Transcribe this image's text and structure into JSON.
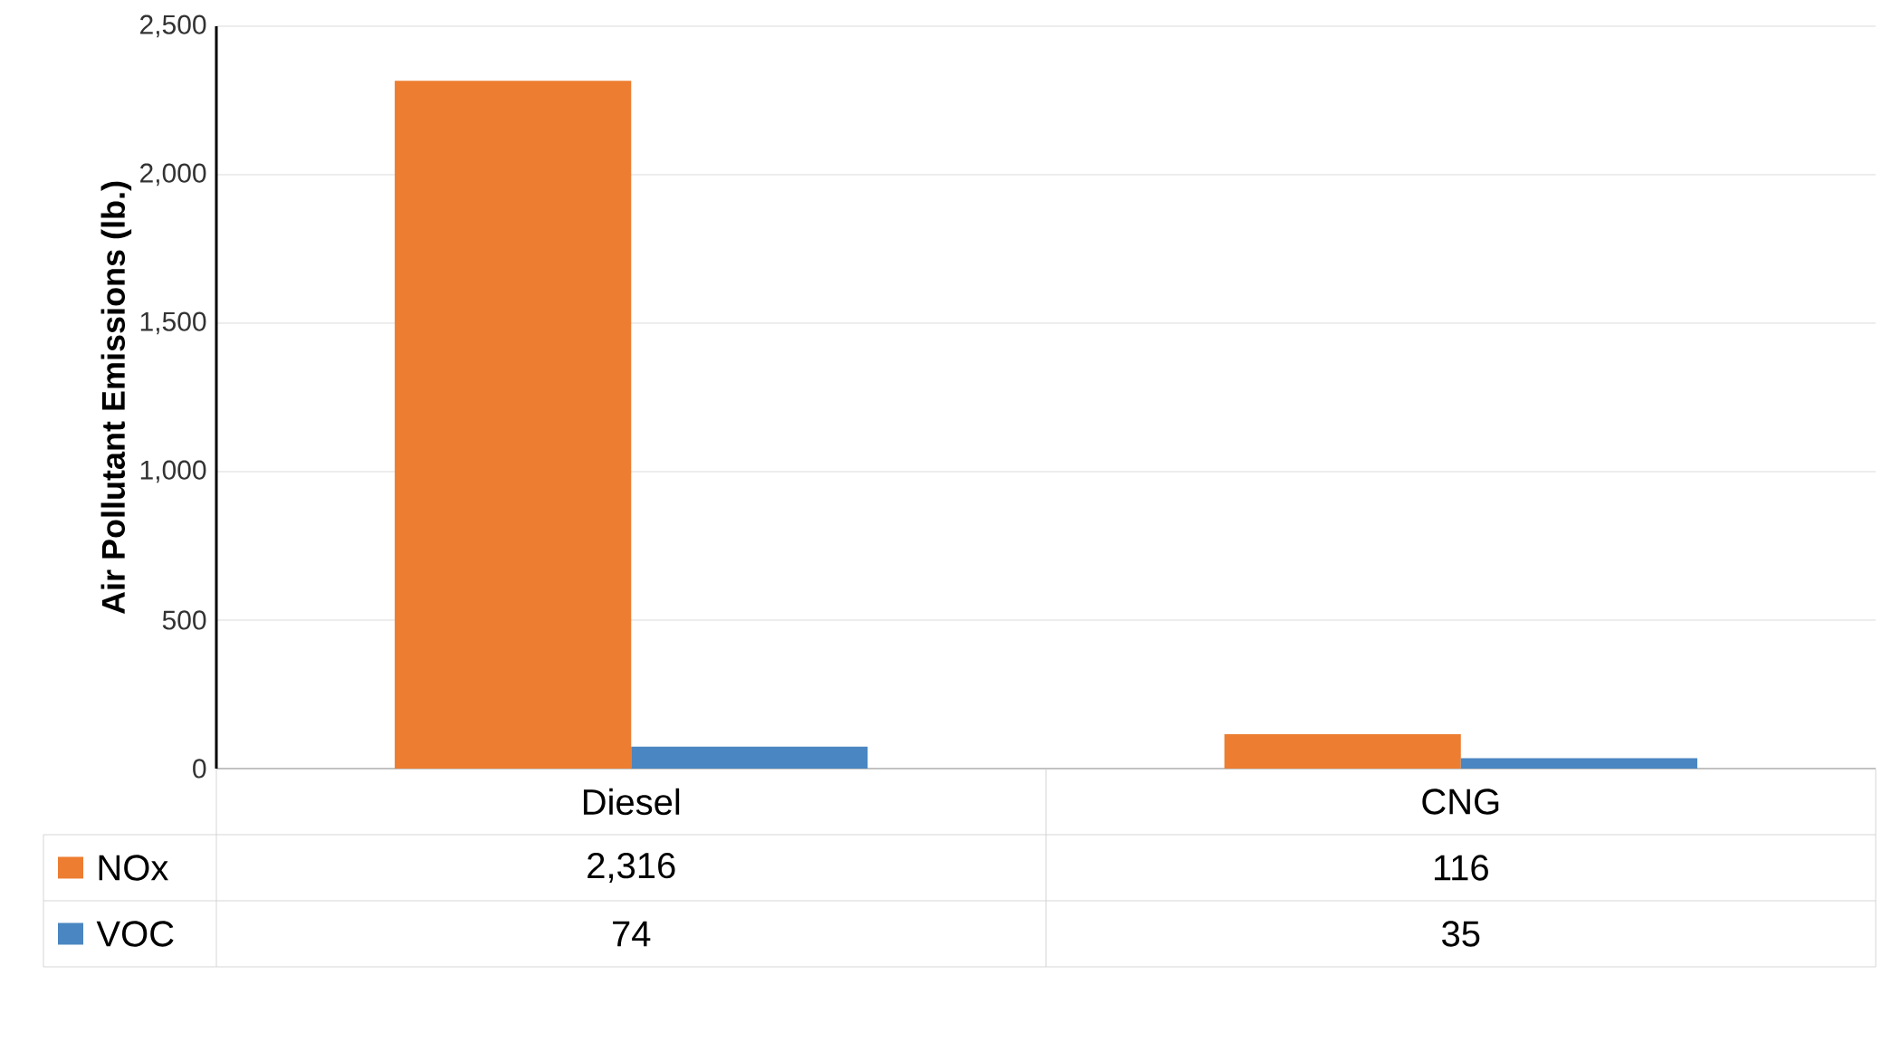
{
  "chart_data": {
    "type": "bar",
    "ylabel": "Air Pollutant Emissions (lb.)",
    "categories": [
      "Diesel",
      "CNG"
    ],
    "series": [
      {
        "name": "NOx",
        "color": "#ed7d31",
        "values": [
          2316,
          116
        ],
        "value_labels": [
          "2,316",
          "116"
        ]
      },
      {
        "name": "VOC",
        "color": "#4a86c1",
        "values": [
          74,
          35
        ],
        "value_labels": [
          "74",
          "35"
        ]
      }
    ],
    "ylim": [
      0,
      2500
    ],
    "yticks": [
      {
        "value": 0,
        "label": "0"
      },
      {
        "value": 500,
        "label": "500"
      },
      {
        "value": 1000,
        "label": "1,000"
      },
      {
        "value": 1500,
        "label": "1,500"
      },
      {
        "value": 2000,
        "label": "2,000"
      },
      {
        "value": 2500,
        "label": "2,500"
      }
    ],
    "grid": "y",
    "legend": "bottom"
  }
}
